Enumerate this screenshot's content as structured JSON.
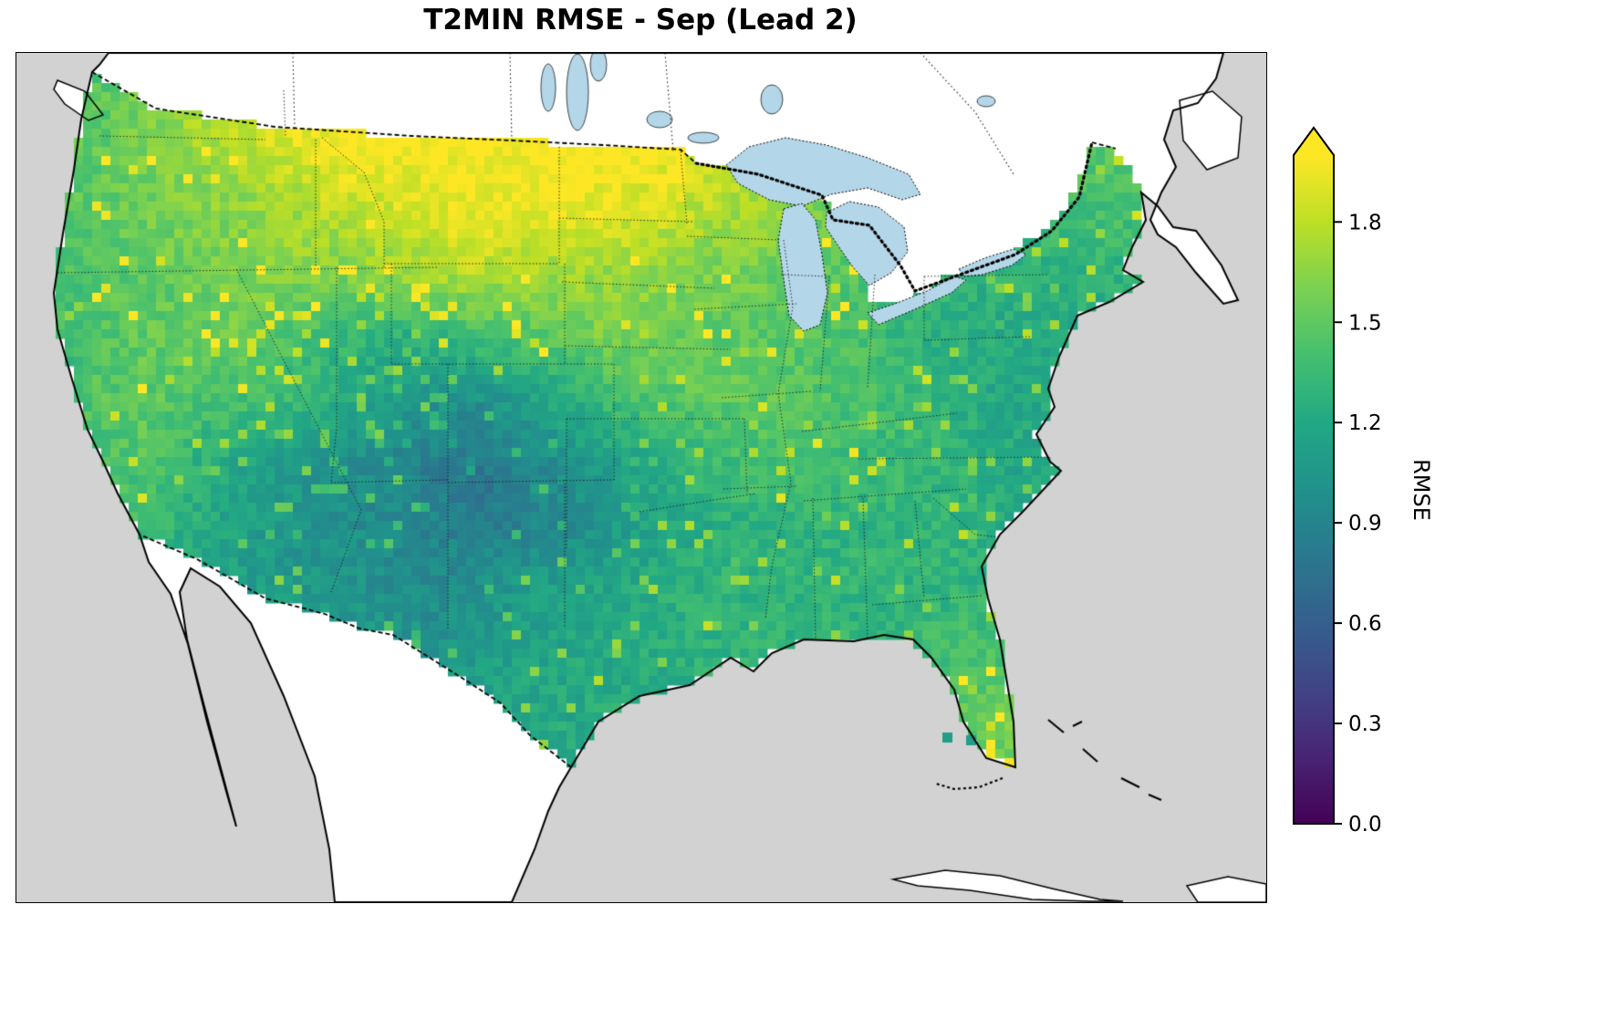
{
  "title": "T2MIN RMSE - Sep (Lead 2)",
  "colorbar": {
    "label": "RMSE",
    "ticks": [
      "0.0",
      "0.3",
      "0.6",
      "0.9",
      "1.2",
      "1.5",
      "1.8"
    ],
    "tick_values": [
      0,
      0.3,
      0.6,
      0.9,
      1.2,
      1.5,
      1.8
    ],
    "vmin": 0.0,
    "vmax": 2.0,
    "extend": "max",
    "colormap": "viridis",
    "colormap_stops": [
      "#440154",
      "#482475",
      "#414487",
      "#355f8d",
      "#2a788e",
      "#21918c",
      "#22a884",
      "#44bf70",
      "#7ad151",
      "#bddf26",
      "#fde725"
    ]
  },
  "map": {
    "ocean_color": "#d2d2d2",
    "land_color": "#ffffff",
    "lake_color": "#b3d6e8",
    "coast_color": "#000000"
  },
  "chart_data": {
    "type": "heatmap",
    "title": "T2MIN RMSE - Sep (Lead 2)",
    "variable": "T2MIN",
    "statistic": "RMSE",
    "month": "Sep",
    "lead": 2,
    "region": "CONUS",
    "colorbar_label": "RMSE",
    "value_range": [
      0.0,
      2.0
    ],
    "lon_range": [
      -125,
      -66
    ],
    "lat_range": [
      50,
      25
    ],
    "grid_note": "Approximate gridded RMSE field over the contiguous US; rows run north to south, columns west to east; original figure is ~0.5-degree pixels.",
    "values": [
      [
        1.5,
        1.45,
        1.55,
        1.7,
        1.75,
        1.9,
        2.0,
        2.0,
        2.0,
        2.0,
        2.0,
        2.0,
        2.0,
        2.0,
        1.95,
        1.9,
        1.8,
        1.7,
        1.6,
        1.5,
        1.45,
        1.5,
        1.55,
        1.5
      ],
      [
        1.45,
        1.5,
        1.6,
        1.7,
        1.8,
        1.9,
        2.0,
        2.0,
        2.0,
        2.0,
        2.0,
        2.0,
        2.0,
        2.0,
        1.95,
        1.9,
        1.85,
        1.7,
        1.5,
        1.4,
        1.4,
        1.45,
        1.5,
        1.5
      ],
      [
        1.45,
        1.5,
        1.55,
        1.6,
        1.65,
        1.7,
        1.8,
        1.85,
        1.9,
        1.95,
        1.95,
        1.95,
        1.9,
        1.85,
        1.75,
        1.7,
        1.6,
        1.5,
        1.4,
        1.35,
        1.3,
        1.35,
        1.4,
        1.4
      ],
      [
        1.4,
        1.45,
        1.5,
        1.55,
        1.6,
        1.65,
        1.6,
        1.7,
        1.75,
        1.8,
        1.75,
        1.7,
        1.7,
        1.65,
        1.6,
        1.55,
        1.5,
        1.45,
        1.35,
        1.3,
        1.28,
        1.3,
        1.3,
        1.3
      ],
      [
        1.35,
        1.45,
        1.5,
        1.5,
        1.55,
        1.45,
        1.35,
        1.25,
        1.3,
        1.4,
        1.45,
        1.55,
        1.6,
        1.55,
        1.5,
        1.5,
        1.45,
        1.4,
        1.3,
        1.25,
        1.2,
        1.2,
        1.2,
        1.2
      ],
      [
        1.3,
        1.45,
        1.5,
        1.45,
        1.4,
        1.35,
        1.25,
        1.15,
        1.05,
        1.0,
        1.1,
        1.25,
        1.4,
        1.45,
        1.5,
        1.5,
        1.45,
        1.4,
        1.35,
        1.25,
        1.2,
        1.2,
        1.2,
        1.2
      ],
      [
        1.3,
        1.4,
        1.45,
        1.3,
        1.2,
        1.1,
        1.0,
        0.95,
        0.85,
        0.8,
        0.9,
        1.05,
        1.15,
        1.25,
        1.35,
        1.4,
        1.4,
        1.35,
        1.35,
        1.3,
        1.2,
        1.2,
        1.2,
        1.2
      ],
      [
        1.25,
        1.3,
        1.35,
        1.25,
        1.15,
        1.05,
        1.0,
        0.95,
        0.9,
        0.85,
        0.9,
        0.95,
        1.1,
        1.2,
        1.25,
        1.3,
        1.3,
        1.3,
        1.3,
        1.3,
        1.25,
        1.22,
        1.2,
        1.2
      ],
      [
        1.1,
        1.1,
        1.1,
        1.1,
        1.1,
        1.1,
        1.05,
        1.0,
        0.95,
        1.0,
        1.1,
        1.15,
        1.2,
        1.25,
        1.3,
        1.3,
        1.3,
        1.3,
        1.3,
        1.3,
        1.3,
        1.3,
        1.3,
        1.3
      ],
      [
        1.1,
        1.1,
        1.1,
        1.1,
        1.1,
        1.1,
        1.1,
        1.1,
        1.05,
        1.1,
        1.15,
        1.2,
        1.2,
        1.25,
        1.3,
        1.3,
        1.3,
        1.3,
        1.35,
        1.4,
        1.45,
        1.4,
        1.35,
        1.3
      ],
      [
        1.15,
        1.15,
        1.15,
        1.15,
        1.15,
        1.15,
        1.15,
        1.15,
        1.1,
        1.15,
        1.2,
        1.2,
        1.25,
        1.25,
        1.3,
        1.3,
        1.3,
        1.35,
        1.4,
        1.5,
        1.55,
        1.5,
        1.4,
        1.35
      ],
      [
        1.2,
        1.2,
        1.2,
        1.2,
        1.2,
        1.2,
        1.2,
        1.2,
        1.2,
        1.2,
        1.2,
        1.25,
        1.25,
        1.3,
        1.3,
        1.3,
        1.3,
        1.35,
        1.45,
        1.5,
        1.5,
        1.45,
        1.4,
        1.35
      ]
    ]
  }
}
